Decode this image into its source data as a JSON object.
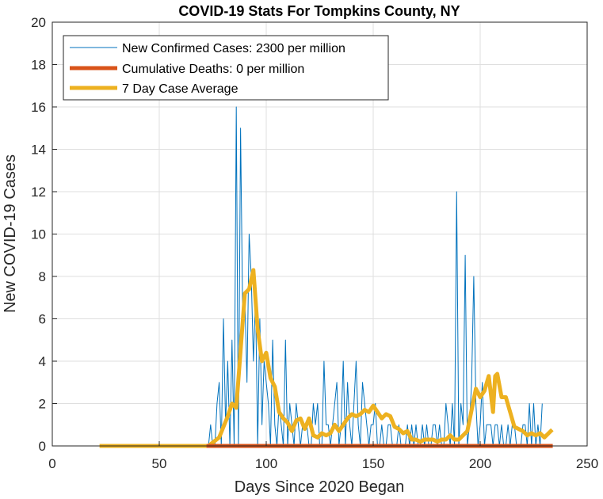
{
  "chart_data": {
    "type": "line",
    "title": "COVID-19 Stats For Tompkins County, NY",
    "xlabel": "Days Since 2020 Began",
    "ylabel": "New COVID-19 Cases",
    "xlim": [
      0,
      250
    ],
    "ylim": [
      0,
      20
    ],
    "xticks": [
      "0",
      "50",
      "100",
      "150",
      "200",
      "250"
    ],
    "yticks": [
      "0",
      "2",
      "4",
      "6",
      "8",
      "10",
      "12",
      "14",
      "16",
      "18",
      "20"
    ],
    "grid": true,
    "legend_position": "top-left",
    "series": [
      {
        "name": "New Confirmed Cases: 2300 per million",
        "color": "#0072BD",
        "x_start": 73,
        "values": [
          0,
          1,
          0,
          0,
          2,
          3,
          0,
          6,
          1,
          4,
          0,
          5,
          0,
          16,
          0,
          15,
          6,
          7,
          3,
          10,
          8,
          4,
          7,
          0,
          6,
          1,
          4,
          3,
          2,
          0,
          5,
          1,
          0,
          2,
          1,
          0,
          5,
          0,
          2,
          1,
          0,
          2,
          1,
          0,
          1,
          1,
          1,
          0,
          0,
          2,
          1,
          2,
          0,
          0,
          4,
          1,
          1,
          0,
          1,
          2,
          3,
          0,
          1,
          4,
          0,
          3,
          1,
          0,
          2,
          4,
          1,
          0,
          3,
          2,
          1,
          0,
          1,
          1,
          2,
          0,
          0,
          1,
          0,
          0,
          1,
          1,
          0,
          0,
          0,
          1,
          0,
          0,
          0,
          1,
          0,
          1,
          0,
          1,
          0,
          0,
          1,
          0,
          1,
          0,
          0,
          1,
          1,
          0,
          1,
          0,
          0,
          2,
          1,
          0,
          2,
          0,
          12,
          0,
          2,
          1,
          9,
          0,
          1,
          3,
          8,
          2,
          0,
          1,
          3,
          0,
          1,
          1,
          1,
          0,
          1,
          1,
          0,
          1,
          0,
          0,
          1,
          0,
          1,
          1,
          0,
          0,
          0,
          1,
          1,
          0,
          2,
          0,
          2,
          0,
          1,
          0,
          2
        ]
      },
      {
        "name": "Cumulative Deaths: 0 per million",
        "color": "#D95319",
        "x": [
          73,
          233
        ],
        "values": [
          0,
          0
        ]
      },
      {
        "name": "7 Day Case Average",
        "color": "#EDB120",
        "x": [
          23,
          73,
          78,
          80,
          82,
          84,
          86,
          88,
          90,
          92,
          94,
          96,
          98,
          100,
          102,
          104,
          106,
          108,
          110,
          112,
          114,
          116,
          118,
          120,
          122,
          124,
          126,
          128,
          130,
          132,
          134,
          136,
          138,
          140,
          142,
          144,
          146,
          148,
          150,
          152,
          154,
          156,
          158,
          160,
          162,
          164,
          166,
          168,
          170,
          172,
          174,
          176,
          178,
          180,
          182,
          184,
          186,
          188,
          190,
          192,
          194,
          196,
          198,
          200,
          202,
          204,
          206,
          207,
          208,
          210,
          212,
          214,
          216,
          218,
          220,
          222,
          224,
          226,
          228,
          230,
          233
        ],
        "values": [
          0,
          0,
          0.4,
          0.9,
          1.4,
          2.0,
          1.8,
          4.5,
          7.2,
          7.4,
          8.3,
          5.5,
          4.0,
          4.4,
          3.2,
          2.8,
          1.6,
          1.3,
          1.1,
          0.7,
          1.2,
          1.3,
          0.8,
          1.3,
          0.5,
          0.4,
          0.6,
          0.5,
          0.6,
          1.0,
          0.7,
          1.0,
          1.3,
          1.5,
          1.4,
          1.5,
          1.7,
          1.6,
          1.9,
          1.6,
          1.3,
          1.5,
          1.4,
          0.9,
          0.8,
          0.6,
          0.7,
          0.3,
          0.3,
          0.2,
          0.3,
          0.3,
          0.3,
          0.2,
          0.3,
          0.3,
          0.5,
          0.3,
          0.3,
          0.5,
          0.7,
          1.7,
          2.7,
          2.3,
          2.6,
          3.3,
          1.6,
          3.3,
          3.4,
          2.3,
          2.3,
          1.6,
          0.9,
          0.8,
          0.7,
          0.5,
          0.6,
          0.5,
          0.6,
          0.4,
          0.7
        ]
      }
    ]
  }
}
